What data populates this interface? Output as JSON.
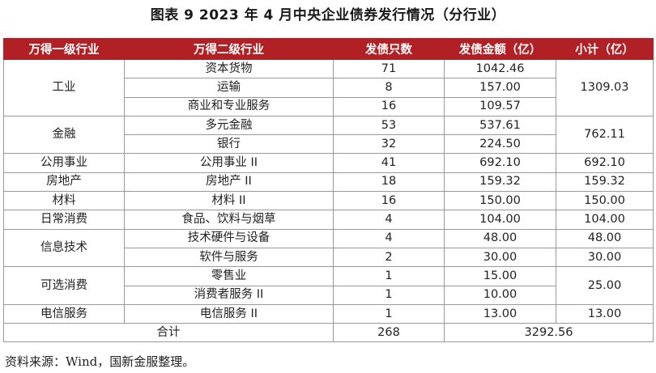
{
  "title": "图表 9  2023 年 4 月中央企业债券发行情况（分行业）",
  "table": {
    "headers": [
      "万得一级行业",
      "万得二级行业",
      "发债只数",
      "发债金额（亿）",
      "小计（亿）"
    ],
    "groups": [
      {
        "industry": "工业",
        "subtotal": "1309.03",
        "rows": [
          {
            "sub": "资本货物",
            "count": "71",
            "amount": "1042.46"
          },
          {
            "sub": "运输",
            "count": "8",
            "amount": "157.00"
          },
          {
            "sub": "商业和专业服务",
            "count": "16",
            "amount": "109.57"
          }
        ]
      },
      {
        "industry": "金融",
        "subtotal": "762.11",
        "rows": [
          {
            "sub": "多元金融",
            "count": "53",
            "amount": "537.61"
          },
          {
            "sub": "银行",
            "count": "32",
            "amount": "224.50"
          }
        ]
      },
      {
        "industry": "公用事业",
        "subtotal": "692.10",
        "rows": [
          {
            "sub": "公用事业 II",
            "count": "41",
            "amount": "692.10"
          }
        ]
      },
      {
        "industry": "房地产",
        "subtotal": "159.32",
        "rows": [
          {
            "sub": "房地产 II",
            "count": "18",
            "amount": "159.32"
          }
        ]
      },
      {
        "industry": "材料",
        "subtotal": "150.00",
        "rows": [
          {
            "sub": "材料 II",
            "count": "16",
            "amount": "150.00"
          }
        ]
      },
      {
        "industry": "日常消费",
        "subtotal": "104.00",
        "rows": [
          {
            "sub": "食品、饮料与烟草",
            "count": "4",
            "amount": "104.00"
          }
        ]
      },
      {
        "industry": "信息技术",
        "subtotal": null,
        "rows": [
          {
            "sub": "技术硬件与设备",
            "count": "4",
            "amount": "48.00",
            "subtotal": "48.00"
          },
          {
            "sub": "软件与服务",
            "count": "2",
            "amount": "30.00",
            "subtotal": "30.00"
          }
        ]
      },
      {
        "industry": "可选消费",
        "subtotal": "25.00",
        "rows": [
          {
            "sub": "零售业",
            "count": "1",
            "amount": "15.00"
          },
          {
            "sub": "消费者服务 II",
            "count": "1",
            "amount": "10.00"
          }
        ]
      },
      {
        "industry": "电信服务",
        "subtotal": "13.00",
        "rows": [
          {
            "sub": "电信服务 II",
            "count": "1",
            "amount": "13.00"
          }
        ]
      }
    ],
    "total": {
      "label": "合计",
      "count": "268",
      "amount": "3292.56"
    }
  },
  "source": "资料来源：Wind，国新金服整理。"
}
